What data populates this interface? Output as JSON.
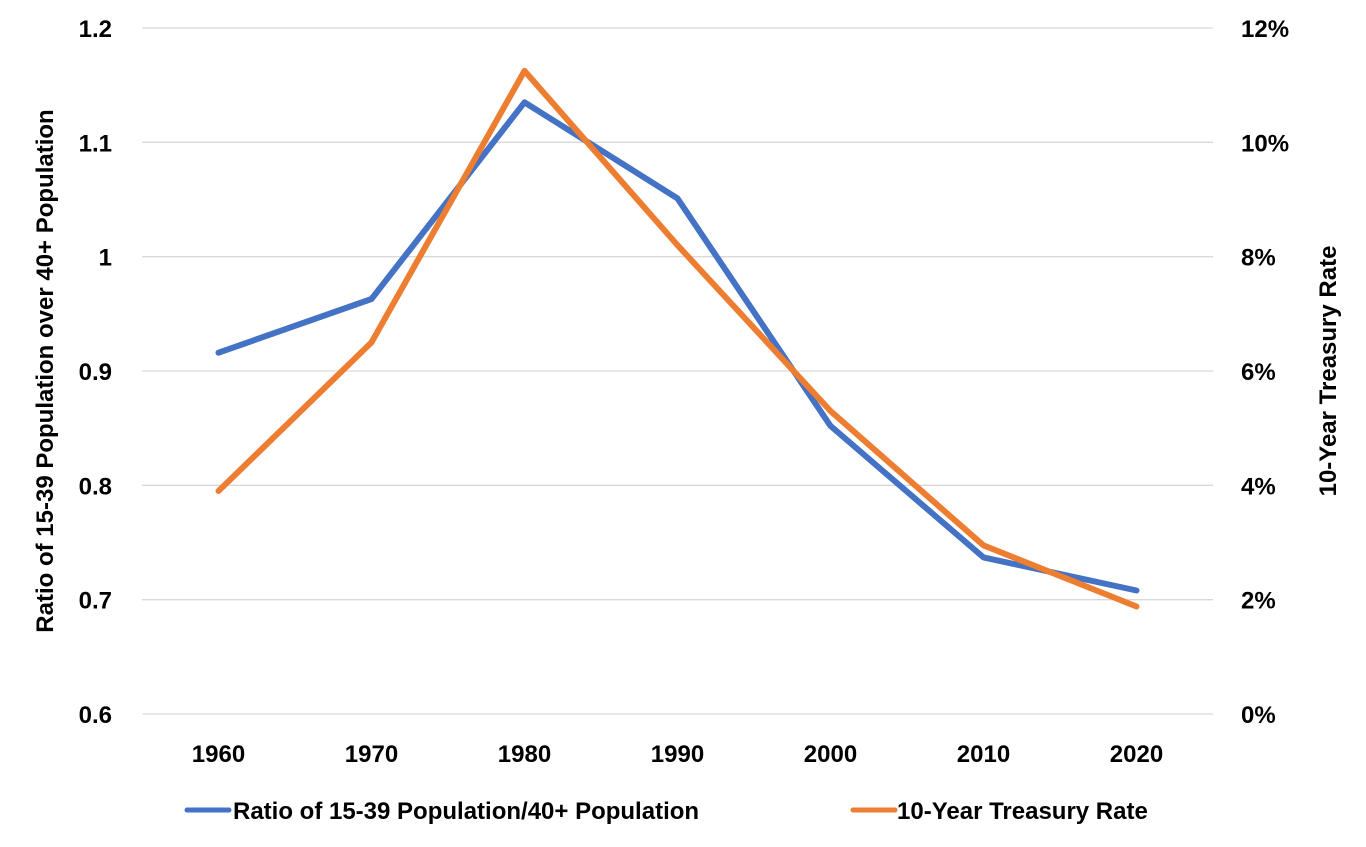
{
  "chart_data": {
    "type": "line",
    "title": "",
    "categories": [
      "1960",
      "1970",
      "1980",
      "1990",
      "2000",
      "2010",
      "2020"
    ],
    "y_left": {
      "label": "Ratio of 15-39 Population over 40+ Population",
      "range": [
        0.6,
        1.2
      ],
      "ticks": [
        "0.6",
        "0.7",
        "0.8",
        "0.9",
        "1",
        "1.1",
        "1.2"
      ],
      "tick_values": [
        0.6,
        0.7,
        0.8,
        0.9,
        1.0,
        1.1,
        1.2
      ]
    },
    "y_right": {
      "label": "10-Year Treasury Rate",
      "range": [
        0,
        12
      ],
      "ticks": [
        "0%",
        "2%",
        "4%",
        "6%",
        "8%",
        "10%",
        "12%"
      ],
      "tick_values": [
        0,
        2,
        4,
        6,
        8,
        10,
        12
      ]
    },
    "series": [
      {
        "name": "Ratio of 15-39 Population/40+ Population",
        "axis": "left",
        "color": "#4472C4",
        "values": [
          0.916,
          0.963,
          1.135,
          1.051,
          0.852,
          0.737,
          0.708
        ]
      },
      {
        "name": "10-Year Treasury Rate",
        "axis": "right",
        "color": "#ED7D31",
        "values": [
          3.9,
          6.5,
          11.25,
          8.2,
          5.3,
          2.95,
          1.88
        ]
      }
    ],
    "grid": true,
    "legend_position": "bottom"
  }
}
